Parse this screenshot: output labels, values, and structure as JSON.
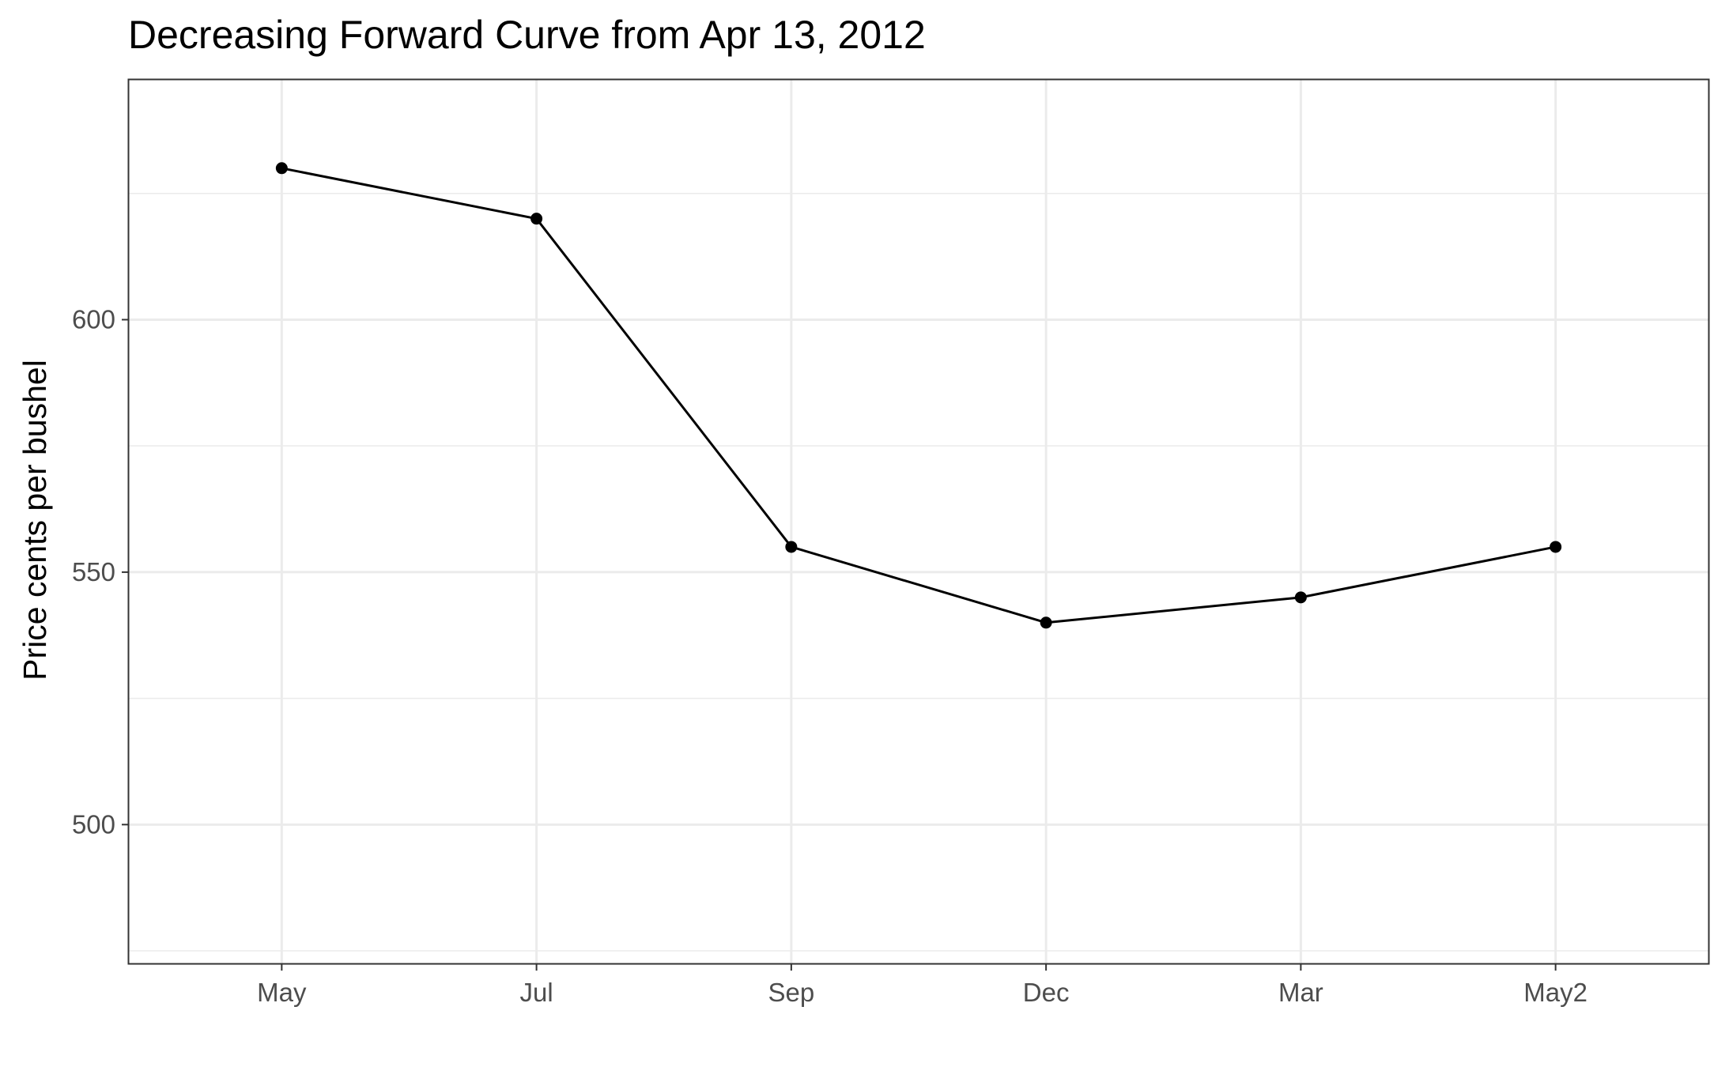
{
  "chart_data": {
    "type": "line",
    "title": "Decreasing Forward Curve from Apr 13, 2012",
    "xlabel": "",
    "ylabel": "Price cents per bushel",
    "categories": [
      "May",
      "Jul",
      "Sep",
      "Dec",
      "Mar",
      "May2"
    ],
    "series": [
      {
        "values": [
          630,
          620,
          555,
          540,
          545,
          555
        ]
      }
    ],
    "ylim": [
      472.5,
      647.5
    ],
    "y_ticks": [
      500,
      550,
      600
    ],
    "y_ticks_text": [
      "500",
      "550",
      "600"
    ],
    "y_minor_ticks": [
      475,
      525,
      575,
      625
    ],
    "grid": true,
    "legend": "none",
    "colors": {
      "line": "#000000",
      "points": "#000000",
      "grid": "#ebebeb",
      "panel_border": "#333333",
      "tick_text": "#4d4d4d",
      "background": "#ffffff"
    }
  }
}
